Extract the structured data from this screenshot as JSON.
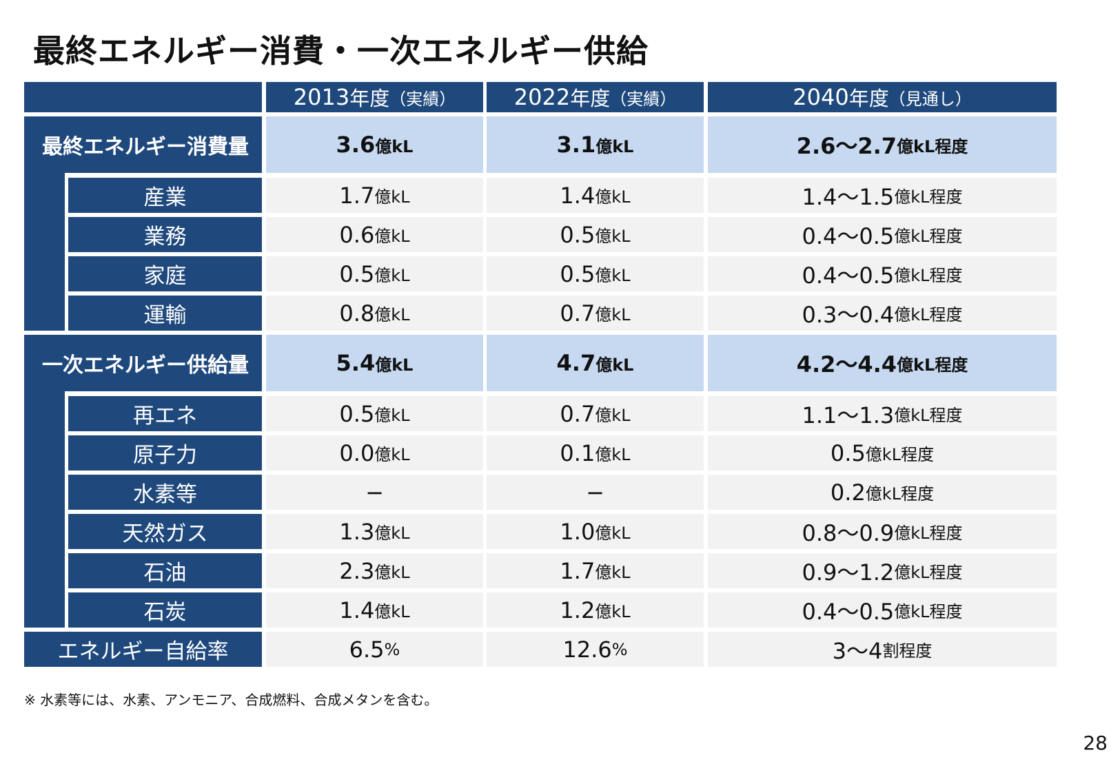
{
  "title": "最終エネルギー消費・一次エネルギー供給",
  "columns": [
    {
      "year": "2013",
      "suffix": "年度",
      "note": "（実績）"
    },
    {
      "year": "2022",
      "suffix": "年度",
      "note": "（実績）"
    },
    {
      "year": "2040",
      "suffix": "年度",
      "note": "（見通し）"
    }
  ],
  "rows": [
    {
      "label": "最終エネルギー消費量",
      "values": [
        {
          "n": "3.6",
          "u": "億kL"
        },
        {
          "n": "3.1",
          "u": "億kL"
        },
        {
          "n": "2.6〜2.7",
          "u": "億kL程度"
        }
      ]
    },
    {
      "label": "産業",
      "values": [
        {
          "n": "1.7",
          "u": "億kL"
        },
        {
          "n": "1.4",
          "u": "億kL"
        },
        {
          "n": "1.4〜1.5",
          "u": "億kL程度"
        }
      ]
    },
    {
      "label": "業務",
      "values": [
        {
          "n": "0.6",
          "u": "億kL"
        },
        {
          "n": "0.5",
          "u": "億kL"
        },
        {
          "n": "0.4〜0.5",
          "u": "億kL程度"
        }
      ]
    },
    {
      "label": "家庭",
      "values": [
        {
          "n": "0.5",
          "u": "億kL"
        },
        {
          "n": "0.5",
          "u": "億kL"
        },
        {
          "n": "0.4〜0.5",
          "u": "億kL程度"
        }
      ]
    },
    {
      "label": "運輸",
      "values": [
        {
          "n": "0.8",
          "u": "億kL"
        },
        {
          "n": "0.7",
          "u": "億kL"
        },
        {
          "n": "0.3〜0.4",
          "u": "億kL程度"
        }
      ]
    },
    {
      "label": "一次エネルギー供給量",
      "values": [
        {
          "n": "5.4",
          "u": "億kL"
        },
        {
          "n": "4.7",
          "u": "億kL"
        },
        {
          "n": "4.2〜4.4",
          "u": "億kL程度"
        }
      ]
    },
    {
      "label": "再エネ",
      "values": [
        {
          "n": "0.5",
          "u": "億kL"
        },
        {
          "n": "0.7",
          "u": "億kL"
        },
        {
          "n": "1.1〜1.3",
          "u": "億kL程度"
        }
      ]
    },
    {
      "label": "原子力",
      "values": [
        {
          "n": "0.0",
          "u": "億kL"
        },
        {
          "n": "0.1",
          "u": "億kL"
        },
        {
          "n": "0.5",
          "u": "億kL程度"
        }
      ]
    },
    {
      "label": "水素等",
      "values": [
        {
          "n": "−",
          "u": ""
        },
        {
          "n": "−",
          "u": ""
        },
        {
          "n": "0.2",
          "u": "億kL程度"
        }
      ]
    },
    {
      "label": "天然ガス",
      "values": [
        {
          "n": "1.3",
          "u": "億kL"
        },
        {
          "n": "1.0",
          "u": "億kL"
        },
        {
          "n": "0.8〜0.9",
          "u": "億kL程度"
        }
      ]
    },
    {
      "label": "石油",
      "values": [
        {
          "n": "2.3",
          "u": "億kL"
        },
        {
          "n": "1.7",
          "u": "億kL"
        },
        {
          "n": "0.9〜1.2",
          "u": "億kL程度"
        }
      ]
    },
    {
      "label": "石炭",
      "values": [
        {
          "n": "1.4",
          "u": "億kL"
        },
        {
          "n": "1.2",
          "u": "億kL"
        },
        {
          "n": "0.4〜0.5",
          "u": "億kL程度"
        }
      ]
    },
    {
      "label": "エネルギー自給率",
      "values": [
        {
          "n": "6.5",
          "u": "%"
        },
        {
          "n": "12.6",
          "u": "%"
        },
        {
          "n": "3〜4",
          "u": "割程度"
        }
      ]
    }
  ],
  "footnote": "※ 水素等には、水素、アンモニア、合成燃料、合成メタンを含む。",
  "page_number": "28",
  "colors": {
    "navy": "#1f497d",
    "light_blue": "#c6d9f1",
    "gray": "#f2f2f2"
  }
}
